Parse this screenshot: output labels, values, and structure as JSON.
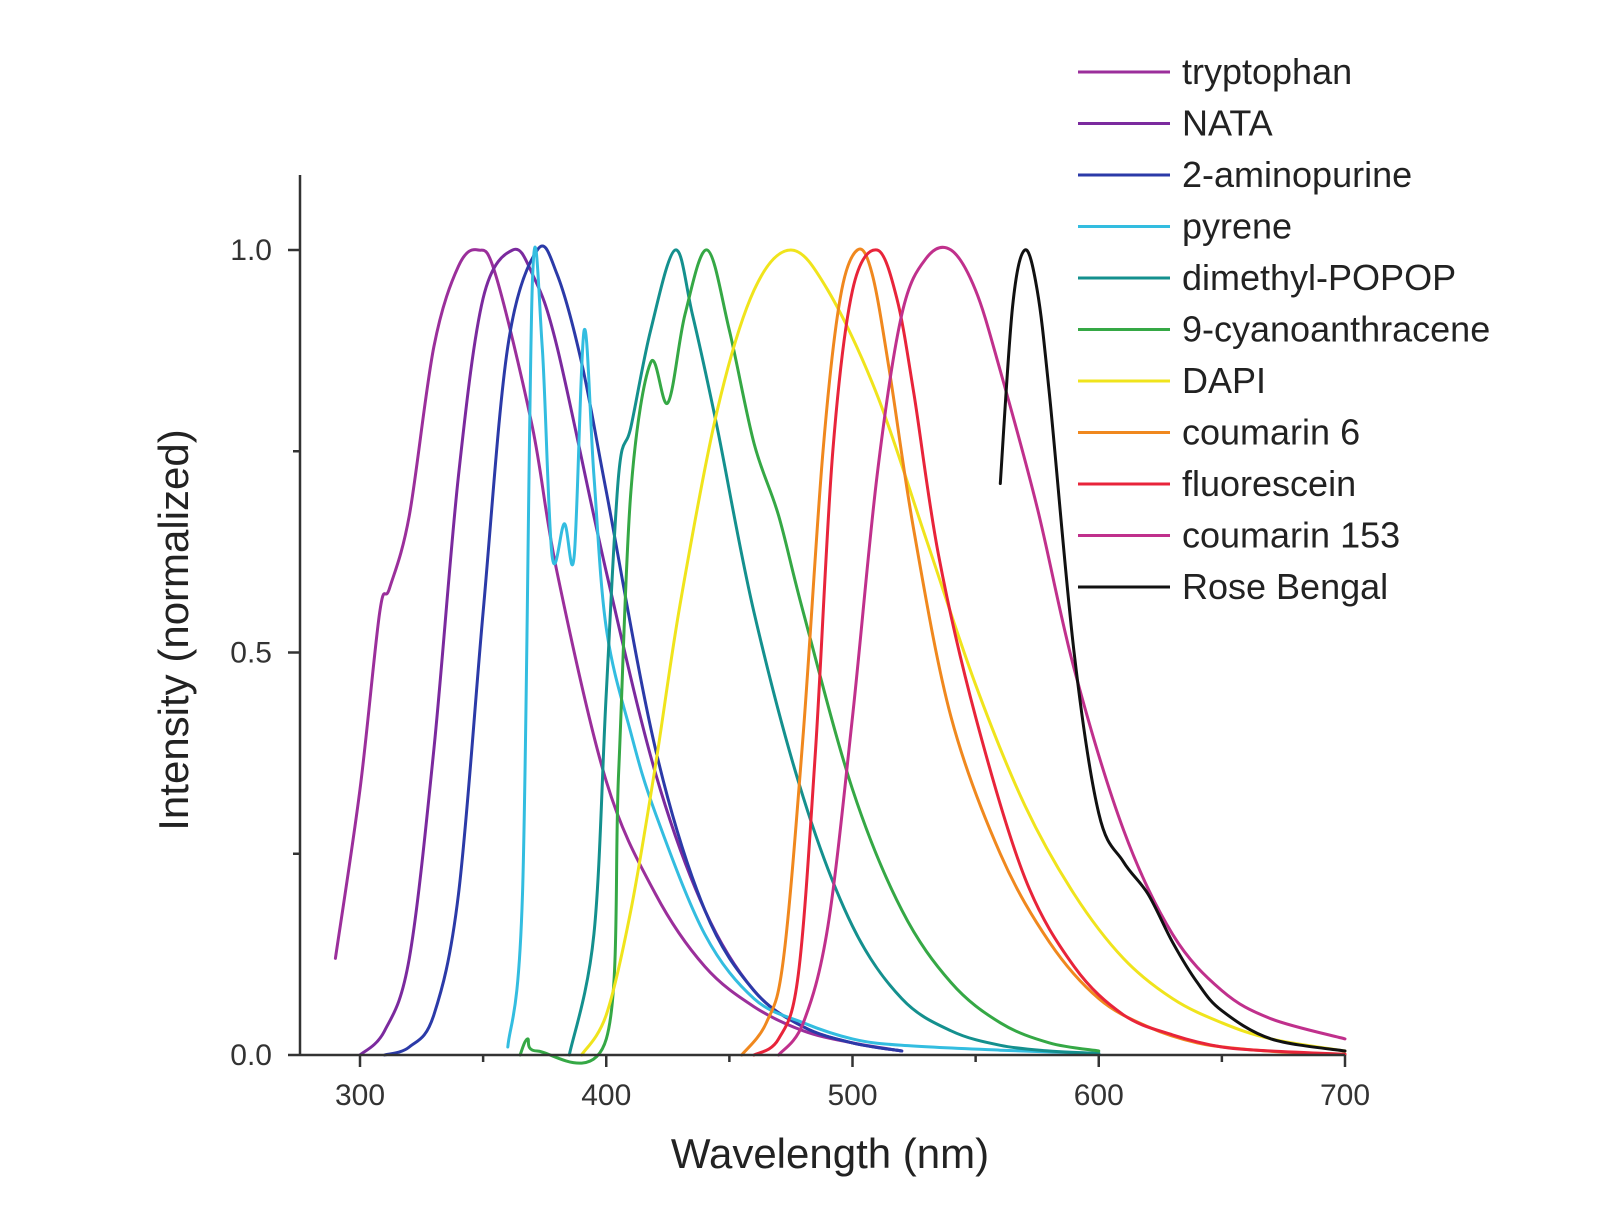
{
  "chart_data": {
    "type": "line",
    "title": "",
    "xlabel": "Wavelength (nm)",
    "ylabel": "Intensity (normalized)",
    "xlim": [
      280,
      700
    ],
    "ylim": [
      0,
      1.1
    ],
    "x_ticks": [
      300,
      400,
      500,
      600,
      700
    ],
    "x_tick_labels": [
      "300",
      "400",
      "500",
      "600",
      "700"
    ],
    "y_ticks": [
      0.0,
      0.5,
      1.0
    ],
    "y_tick_labels": [
      "0.0",
      "0.5",
      "1.0"
    ],
    "grid": false,
    "legend_position": "top-right",
    "series": [
      {
        "name": "tryptophan",
        "color": "#9b2f9b",
        "x": [
          290,
          300,
          308,
          312,
          320,
          330,
          340,
          348,
          355,
          370,
          380,
          400,
          420,
          440,
          460,
          480,
          500,
          520
        ],
        "y": [
          0.12,
          0.33,
          0.55,
          0.58,
          0.67,
          0.88,
          0.98,
          1.0,
          0.97,
          0.78,
          0.6,
          0.34,
          0.2,
          0.11,
          0.06,
          0.03,
          0.015,
          0.005
        ]
      },
      {
        "name": "NATA",
        "color": "#7b2a9e",
        "x": [
          300,
          310,
          320,
          330,
          340,
          350,
          362,
          370,
          380,
          400,
          420,
          440,
          460,
          480,
          500,
          520
        ],
        "y": [
          0.0,
          0.03,
          0.12,
          0.38,
          0.72,
          0.94,
          1.0,
          0.97,
          0.88,
          0.6,
          0.35,
          0.18,
          0.08,
          0.035,
          0.015,
          0.005
        ]
      },
      {
        "name": "2-aminopurine",
        "color": "#2b3aa8",
        "x": [
          310,
          320,
          330,
          340,
          350,
          360,
          372,
          380,
          390,
          400,
          420,
          440,
          460,
          480,
          500,
          520
        ],
        "y": [
          0.0,
          0.01,
          0.05,
          0.2,
          0.55,
          0.88,
          1.0,
          0.97,
          0.86,
          0.7,
          0.38,
          0.18,
          0.08,
          0.035,
          0.015,
          0.005
        ]
      },
      {
        "name": "pyrene",
        "color": "#33bde0",
        "x": [
          360,
          366,
          370,
          374,
          378,
          383,
          387,
          391,
          395,
          400,
          410,
          420,
          440,
          460,
          480,
          500,
          520,
          560,
          600
        ],
        "y": [
          0.01,
          0.2,
          0.96,
          0.88,
          0.62,
          0.66,
          0.62,
          0.9,
          0.72,
          0.53,
          0.4,
          0.3,
          0.15,
          0.07,
          0.04,
          0.02,
          0.012,
          0.006,
          0.002
        ]
      },
      {
        "name": "dimethyl-POPOP",
        "color": "#14908e",
        "x": [
          385,
          395,
          400,
          405,
          410,
          418,
          428,
          435,
          445,
          460,
          480,
          500,
          520,
          540,
          560,
          580,
          600
        ],
        "y": [
          0.0,
          0.15,
          0.45,
          0.72,
          0.78,
          0.9,
          1.0,
          0.92,
          0.78,
          0.55,
          0.32,
          0.16,
          0.07,
          0.03,
          0.012,
          0.005,
          0.002
        ]
      },
      {
        "name": "9-cyanoanthracene",
        "color": "#35a845",
        "x": [
          365,
          368,
          372,
          400,
          405,
          410,
          418,
          425,
          432,
          441,
          450,
          460,
          470,
          480,
          500,
          520,
          540,
          560,
          580,
          600
        ],
        "y": [
          0.0,
          0.02,
          0.005,
          0.02,
          0.35,
          0.7,
          0.86,
          0.81,
          0.92,
          1.0,
          0.9,
          0.76,
          0.67,
          0.55,
          0.33,
          0.18,
          0.09,
          0.04,
          0.015,
          0.005
        ]
      },
      {
        "name": "DAPI",
        "color": "#f0e41c",
        "x": [
          390,
          400,
          410,
          420,
          430,
          445,
          460,
          475,
          490,
          510,
          530,
          550,
          570,
          590,
          610,
          630,
          650,
          670,
          700
        ],
        "y": [
          0.0,
          0.05,
          0.18,
          0.36,
          0.56,
          0.8,
          0.95,
          1.0,
          0.95,
          0.82,
          0.64,
          0.46,
          0.31,
          0.2,
          0.12,
          0.07,
          0.04,
          0.02,
          0.005
        ]
      },
      {
        "name": "coumarin 6",
        "color": "#f0881e",
        "x": [
          455,
          465,
          472,
          480,
          488,
          495,
          502,
          508,
          515,
          525,
          540,
          560,
          580,
          600,
          620,
          640,
          660,
          680,
          700
        ],
        "y": [
          0.0,
          0.04,
          0.12,
          0.4,
          0.75,
          0.94,
          1.0,
          0.97,
          0.85,
          0.65,
          0.42,
          0.25,
          0.14,
          0.07,
          0.035,
          0.015,
          0.007,
          0.003,
          0.001
        ]
      },
      {
        "name": "fluorescein",
        "color": "#e8243a",
        "x": [
          460,
          470,
          478,
          485,
          492,
          500,
          510,
          518,
          525,
          535,
          550,
          570,
          590,
          610,
          630,
          650,
          670,
          700
        ],
        "y": [
          0.0,
          0.02,
          0.1,
          0.38,
          0.75,
          0.95,
          1.0,
          0.94,
          0.82,
          0.62,
          0.42,
          0.22,
          0.11,
          0.05,
          0.025,
          0.01,
          0.005,
          0.001
        ]
      },
      {
        "name": "coumarin 153",
        "color": "#c0308c",
        "x": [
          470,
          480,
          490,
          500,
          510,
          520,
          530,
          540,
          550,
          560,
          575,
          590,
          610,
          630,
          650,
          670,
          700
        ],
        "y": [
          0.0,
          0.04,
          0.16,
          0.42,
          0.72,
          0.92,
          0.99,
          1.0,
          0.95,
          0.85,
          0.68,
          0.48,
          0.28,
          0.15,
          0.08,
          0.045,
          0.02
        ]
      },
      {
        "name": "Rose Bengal",
        "color": "#111111",
        "x": [
          560,
          565,
          570,
          575,
          580,
          590,
          600,
          610,
          620,
          630,
          640,
          650,
          670,
          700
        ],
        "y": [
          0.71,
          0.93,
          1.0,
          0.95,
          0.82,
          0.5,
          0.3,
          0.24,
          0.2,
          0.14,
          0.09,
          0.055,
          0.02,
          0.005
        ]
      }
    ]
  }
}
